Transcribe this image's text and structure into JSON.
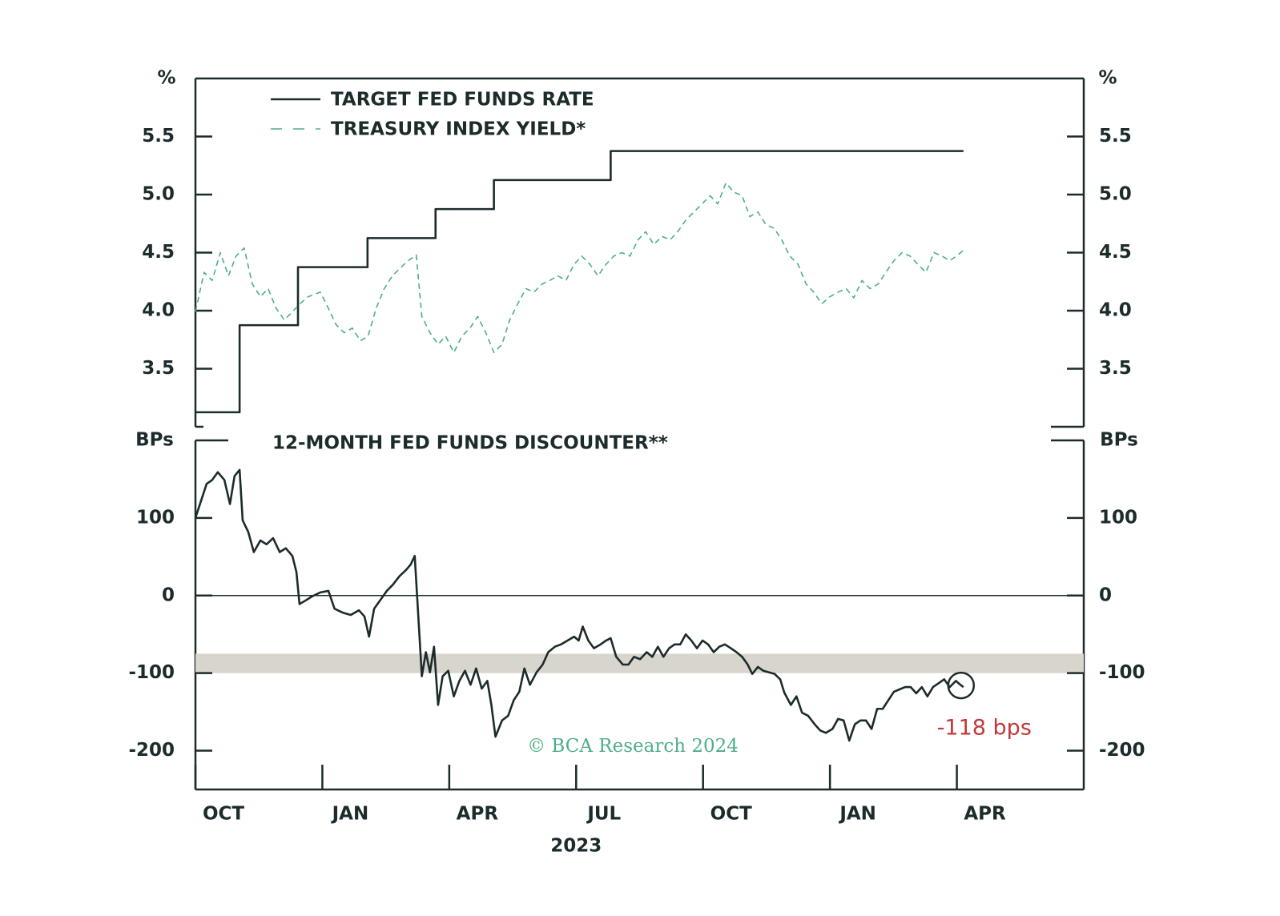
{
  "chart_data": [
    {
      "type": "line",
      "y_axis_label": "%",
      "xlim": [
        2022.75,
        2024.5
      ],
      "ylim": [
        3.0,
        6.0
      ],
      "yticks": [
        5.5,
        {
          "value": 5,
          "label": "5.0"
        },
        4.5,
        {
          "value": 4,
          "label": "4.0"
        },
        3.5
      ],
      "legend": "top-left",
      "series": [
        {
          "name": "TARGET FED FUNDS RATE",
          "color": "#1c2b2b",
          "dash": false,
          "x": [
            2022.75,
            2022.837,
            2022.837,
            2022.952,
            2022.952,
            2023.089,
            2023.089,
            2023.223,
            2023.223,
            2023.338,
            2023.338,
            2023.568,
            2023.568,
            2024.263
          ],
          "values": [
            3.125,
            3.125,
            3.875,
            3.875,
            4.375,
            4.375,
            4.625,
            4.625,
            4.875,
            4.875,
            5.125,
            5.125,
            5.375,
            5.375
          ]
        },
        {
          "name": "TREASURY INDEX YIELD*",
          "color": "#4fae88",
          "dash": true,
          "x": [
            2022.75,
            2022.767,
            2022.783,
            2022.799,
            2022.815,
            2022.83,
            2022.846,
            2022.862,
            2022.878,
            2022.893,
            2022.909,
            2022.925,
            2022.941,
            2022.956,
            2022.972,
            2022.996,
            2023.012,
            2023.027,
            2023.043,
            2023.059,
            2023.075,
            2023.09,
            2023.106,
            2023.122,
            2023.138,
            2023.154,
            2023.169,
            2023.185,
            2023.196,
            2023.212,
            2023.228,
            2023.243,
            2023.259,
            2023.275,
            2023.291,
            2023.306,
            2023.322,
            2023.338,
            2023.354,
            2023.369,
            2023.385,
            2023.401,
            2023.417,
            2023.433,
            2023.448,
            2023.464,
            2023.48,
            2023.496,
            2023.511,
            2023.527,
            2023.543,
            2023.559,
            2023.574,
            2023.59,
            2023.606,
            2023.622,
            2023.637,
            2023.653,
            2023.669,
            2023.685,
            2023.7,
            2023.716,
            2023.732,
            2023.748,
            2023.764,
            2023.779,
            2023.795,
            2023.811,
            2023.827,
            2023.842,
            2023.858,
            2023.874,
            2023.89,
            2023.905,
            2023.921,
            2023.937,
            2023.953,
            2023.968,
            2023.984,
            2024.0,
            2024.016,
            2024.032,
            2024.047,
            2024.063,
            2024.079,
            2024.095,
            2024.11,
            2024.126,
            2024.142,
            2024.158,
            2024.173,
            2024.189,
            2024.205,
            2024.221,
            2024.236,
            2024.252,
            2024.263
          ],
          "values": [
            3.99,
            4.33,
            4.26,
            4.5,
            4.3,
            4.47,
            4.54,
            4.23,
            4.12,
            4.19,
            4.02,
            3.92,
            3.99,
            4.06,
            4.12,
            4.16,
            4.02,
            3.88,
            3.81,
            3.85,
            3.74,
            3.78,
            4.02,
            4.19,
            4.3,
            4.37,
            4.43,
            4.48,
            3.95,
            3.81,
            3.71,
            3.78,
            3.64,
            3.78,
            3.85,
            3.95,
            3.81,
            3.64,
            3.71,
            3.92,
            4.06,
            4.19,
            4.16,
            4.23,
            4.26,
            4.3,
            4.26,
            4.4,
            4.47,
            4.4,
            4.3,
            4.4,
            4.47,
            4.5,
            4.47,
            4.61,
            4.68,
            4.57,
            4.64,
            4.61,
            4.68,
            4.78,
            4.85,
            4.92,
            4.99,
            4.92,
            5.1,
            5.02,
            4.99,
            4.81,
            4.85,
            4.74,
            4.71,
            4.61,
            4.47,
            4.4,
            4.23,
            4.16,
            4.06,
            4.12,
            4.16,
            4.19,
            4.11,
            4.26,
            4.19,
            4.23,
            4.33,
            4.43,
            4.5,
            4.47,
            4.4,
            4.33,
            4.5,
            4.47,
            4.43,
            4.48,
            4.52
          ]
        }
      ]
    },
    {
      "type": "line",
      "title": "12-MONTH FED FUNDS DISCOUNTER**",
      "y_axis_label": "BPs",
      "xlim": [
        2022.75,
        2024.5
      ],
      "xticks": [
        {
          "value": 2022.75,
          "label": "OCT"
        },
        {
          "value": 2023,
          "label": "JAN"
        },
        {
          "value": 2023.25,
          "label": "APR"
        },
        {
          "value": 2023.5,
          "label": "JUL"
        },
        {
          "value": 2023.75,
          "label": "OCT"
        },
        {
          "value": 2024,
          "label": "JAN"
        },
        {
          "value": 2024.25,
          "label": "APR"
        }
      ],
      "x_group_label": "2023",
      "ylim": [
        -250,
        200
      ],
      "yticks": [
        100,
        0,
        -100,
        -200
      ],
      "zero_line": true,
      "band": [
        -100,
        -75
      ],
      "band_color": "#d8d6cc",
      "annotation": {
        "text": "-118 bps",
        "x": 2024.263,
        "y": -118,
        "color": "#c0393b"
      },
      "source": "© BCA Research 2024",
      "series": [
        {
          "color": "#1c2b2b",
          "x": [
            2022.75,
            2022.759,
            2022.772,
            2022.783,
            2022.794,
            2022.807,
            2022.818,
            2022.827,
            2022.837,
            2022.843,
            2022.854,
            2022.865,
            2022.878,
            2022.89,
            2022.903,
            2022.916,
            2022.928,
            2022.941,
            2022.949,
            2022.955,
            2022.968,
            2022.98,
            2022.996,
            2023.012,
            2023.024,
            2023.04,
            2023.056,
            2023.072,
            2023.083,
            2023.092,
            2023.102,
            2023.114,
            2023.127,
            2023.139,
            2023.152,
            2023.165,
            2023.174,
            2023.182,
            2023.19,
            2023.196,
            2023.204,
            2023.212,
            2023.22,
            2023.228,
            2023.237,
            2023.248,
            2023.259,
            2023.27,
            2023.281,
            2023.292,
            2023.303,
            2023.314,
            2023.325,
            2023.333,
            2023.341,
            2023.354,
            2023.366,
            2023.377,
            2023.388,
            2023.398,
            2023.409,
            2023.422,
            2023.434,
            2023.445,
            2023.458,
            2023.47,
            2023.483,
            2023.496,
            2023.505,
            2023.513,
            2023.524,
            2023.535,
            2023.548,
            2023.559,
            2023.568,
            2023.579,
            2023.592,
            2023.603,
            2023.614,
            2023.626,
            2023.639,
            2023.65,
            2023.661,
            2023.672,
            2023.683,
            2023.694,
            2023.705,
            2023.716,
            2023.727,
            2023.738,
            2023.749,
            2023.76,
            2023.771,
            2023.782,
            2023.793,
            2023.805,
            2023.816,
            2023.827,
            2023.838,
            2023.847,
            2023.858,
            2023.869,
            2023.88,
            2023.891,
            2023.902,
            2023.91,
            2023.923,
            2023.934,
            2023.945,
            2023.957,
            2023.97,
            2023.981,
            2023.992,
            2024.005,
            2024.016,
            2024.027,
            2024.038,
            2024.049,
            2024.06,
            2024.071,
            2024.082,
            2024.093,
            2024.104,
            2024.115,
            2024.126,
            2024.137,
            2024.148,
            2024.159,
            2024.17,
            2024.181,
            2024.192,
            2024.203,
            2024.214,
            2024.225,
            2024.236,
            2024.248,
            2024.257,
            2024.263
          ],
          "values": [
            100,
            118,
            144,
            149,
            159,
            149,
            118,
            154,
            162,
            97,
            82,
            56,
            71,
            66,
            74,
            56,
            61,
            51,
            30,
            -11,
            -6,
            -1,
            4,
            6,
            -17,
            -22,
            -25,
            -19,
            -27,
            -53,
            -17,
            -6,
            6,
            14,
            25,
            33,
            40,
            51,
            -37,
            -104,
            -73,
            -99,
            -66,
            -141,
            -104,
            -97,
            -130,
            -110,
            -97,
            -115,
            -94,
            -120,
            -110,
            -141,
            -182,
            -161,
            -155,
            -135,
            -124,
            -94,
            -115,
            -99,
            -89,
            -73,
            -66,
            -63,
            -58,
            -53,
            -58,
            -40,
            -58,
            -68,
            -63,
            -58,
            -55,
            -79,
            -89,
            -89,
            -79,
            -82,
            -73,
            -79,
            -66,
            -79,
            -68,
            -63,
            -63,
            -50,
            -58,
            -68,
            -58,
            -63,
            -73,
            -66,
            -63,
            -68,
            -73,
            -79,
            -89,
            -101,
            -92,
            -97,
            -99,
            -101,
            -108,
            -125,
            -141,
            -130,
            -151,
            -155,
            -166,
            -174,
            -177,
            -172,
            -159,
            -161,
            -187,
            -166,
            -161,
            -161,
            -172,
            -146,
            -146,
            -135,
            -124,
            -121,
            -118,
            -118,
            -126,
            -118,
            -130,
            -118,
            -113,
            -108,
            -118,
            -110,
            -115,
            -118
          ]
        }
      ]
    }
  ]
}
